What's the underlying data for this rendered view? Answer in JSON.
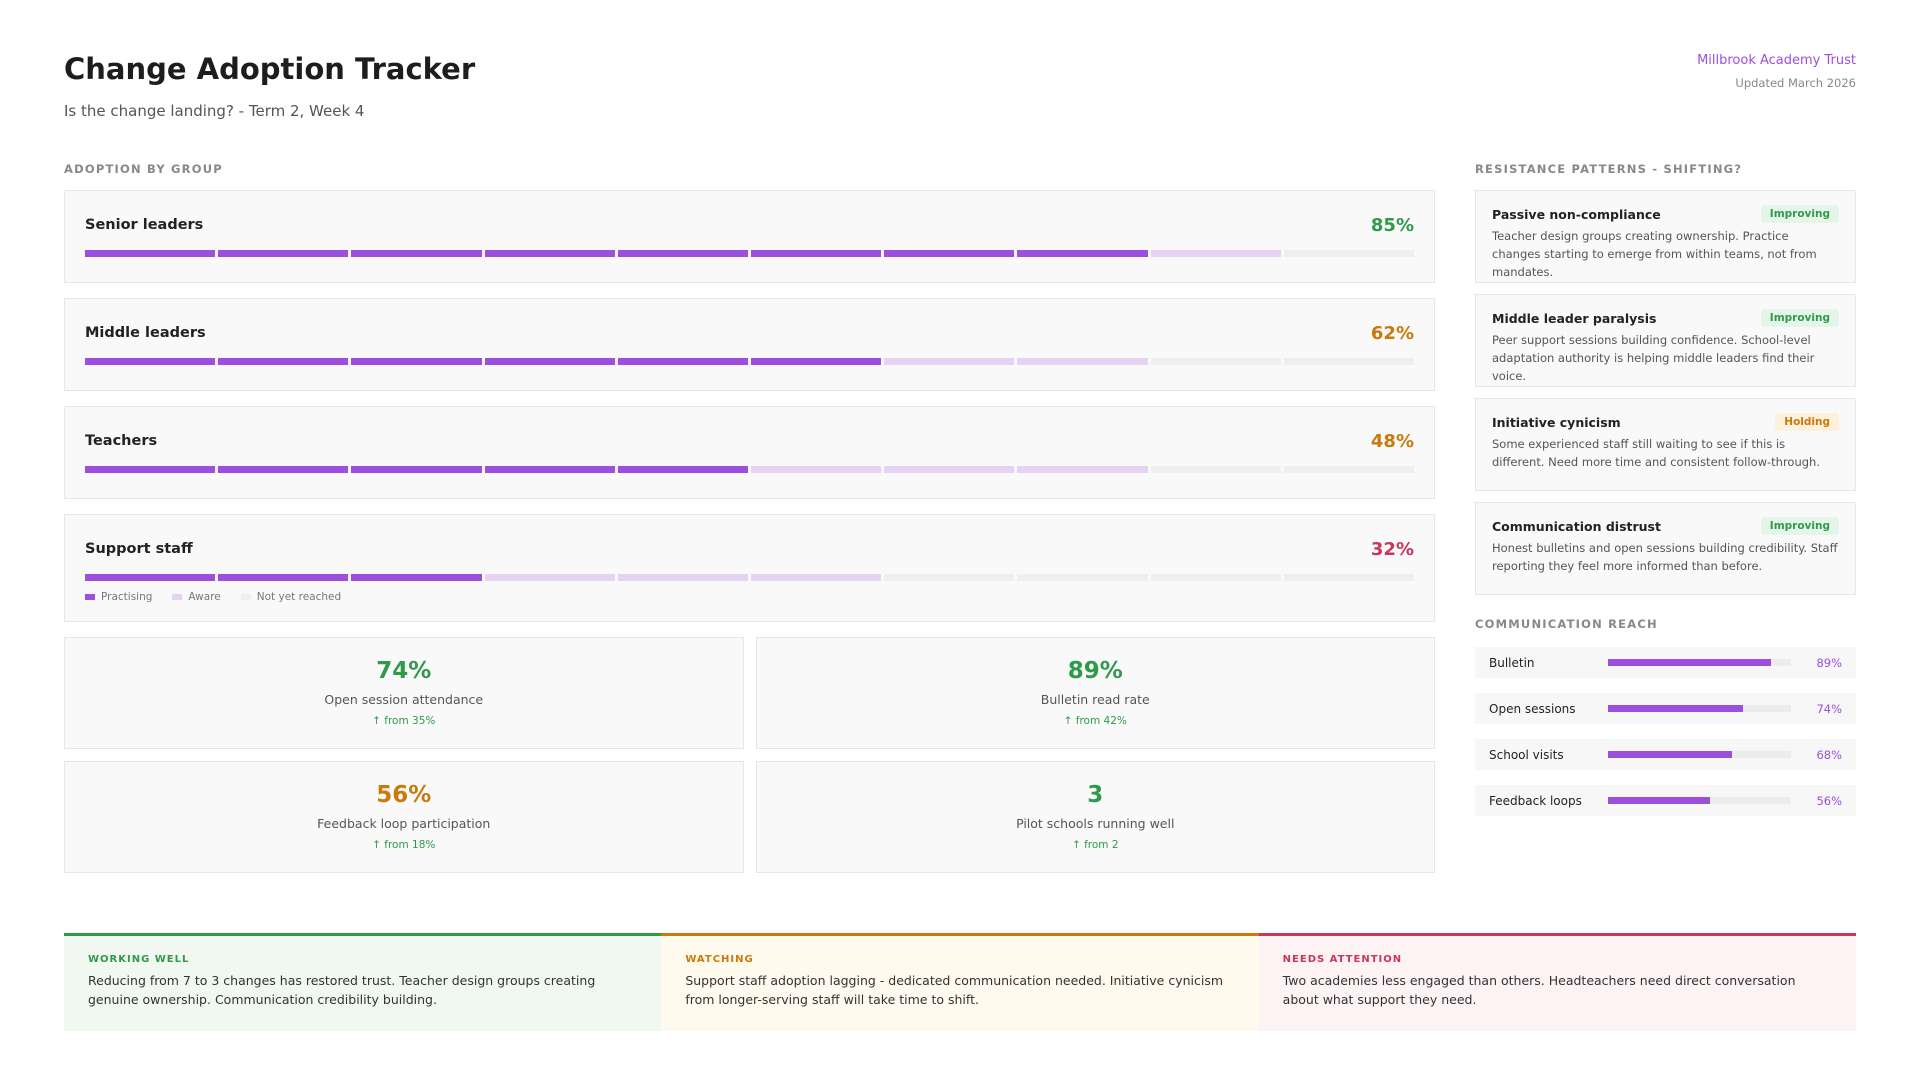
{
  "header": {
    "title": "Change Adoption Tracker",
    "subtitle": "Is the change landing? - Term 2, Week 4",
    "organisation": "Millbrook Academy Trust",
    "updated": "Updated March 2026"
  },
  "adoption": {
    "title": "ADOPTION BY GROUP",
    "colors": {
      "practising": "#9b4fdc",
      "aware": "#e6d2f3",
      "not_reached": "#efefef"
    },
    "groups": [
      {
        "name": "Senior leaders",
        "percent": {
          "value": 85,
          "label": "85%"
        },
        "color": "#2e9a4a",
        "practising": 8,
        "aware": 1,
        "not_reached": 1
      },
      {
        "name": "Middle leaders",
        "percent": {
          "value": 62,
          "label": "62%"
        },
        "color": "#c87a0a",
        "practising": 6,
        "aware": 2,
        "not_reached": 2
      },
      {
        "name": "Teachers",
        "percent": {
          "value": 48,
          "label": "48%"
        },
        "color": "#c87a0a",
        "practising": 5,
        "aware": 3,
        "not_reached": 2
      },
      {
        "name": "Support staff",
        "percent": {
          "value": 32,
          "label": "32%"
        },
        "color": "#c8365a",
        "practising": 3,
        "aware": 3,
        "not_reached": 4
      }
    ],
    "legend": {
      "practising": "Practising",
      "aware": "Aware",
      "not_reached": "Not yet reached"
    }
  },
  "kpis": [
    {
      "value": {
        "value": 74,
        "label": "74%"
      },
      "label": "Open session attendance",
      "change": "↑ from 35%",
      "color": "#2e9a4a"
    },
    {
      "value": {
        "value": 89,
        "label": "89%"
      },
      "label": "Bulletin read rate",
      "change": "↑ from 42%",
      "color": "#2e9a4a"
    },
    {
      "value": {
        "value": 56,
        "label": "56%"
      },
      "label": "Feedback loop participation",
      "change": "↑ from 18%",
      "color": "#c87a0a"
    },
    {
      "value": 3,
      "label": "Pilot schools running well",
      "change": "↑ from 2",
      "color": "#2e9a4a"
    }
  ],
  "resistance": {
    "title": "RESISTANCE PATTERNS - SHIFTING?",
    "items": [
      {
        "name": "Passive non-compliance",
        "status": "Improving",
        "status_color": "#2e9a4a",
        "status_bg": "#e6f5ea",
        "text": "Teacher design groups creating ownership. Practice changes starting to emerge from within teams, not from mandates."
      },
      {
        "name": "Middle leader paralysis",
        "status": "Improving",
        "status_color": "#2e9a4a",
        "status_bg": "#e6f5ea",
        "text": "Peer support sessions building confidence. School-level adaptation authority is helping middle leaders find their voice."
      },
      {
        "name": "Initiative cynicism",
        "status": "Holding",
        "status_color": "#c87a0a",
        "status_bg": "#fdf0dc",
        "text": "Some experienced staff still waiting to see if this is different. Need more time and consistent follow-through."
      },
      {
        "name": "Communication distrust",
        "status": "Improving",
        "status_color": "#2e9a4a",
        "status_bg": "#e6f5ea",
        "text": "Honest bulletins and open sessions building credibility. Staff reporting they feel more informed than before."
      }
    ]
  },
  "reach": {
    "title": "COMMUNICATION REACH",
    "xlim": [
      0,
      100
    ],
    "color": "#9b4fdc",
    "items": [
      {
        "name": "Bulletin",
        "value": {
          "value": 89,
          "label": "89%"
        }
      },
      {
        "name": "Open sessions",
        "value": {
          "value": 74,
          "label": "74%"
        }
      },
      {
        "name": "School visits",
        "value": {
          "value": 68,
          "label": "68%"
        }
      },
      {
        "name": "Feedback loops",
        "value": {
          "value": 56,
          "label": "56%"
        }
      }
    ]
  },
  "notes": [
    {
      "label": "WORKING WELL",
      "text": "Reducing from 7 to 3 changes has restored trust. Teacher design groups creating genuine ownership. Communication credibility building.",
      "color": "#2e9a4a",
      "background": "#f0f8f1"
    },
    {
      "label": "WATCHING",
      "text": "Support staff adoption lagging - dedicated communication needed. Initiative cynicism from longer-serving staff will take time to shift.",
      "color": "#c87a0a",
      "background": "#fffaee"
    },
    {
      "label": "NEEDS ATTENTION",
      "text": "Two academies less engaged than others. Headteachers need direct conversation about what support they need.",
      "color": "#c8365a",
      "background": "#fdf2f4"
    }
  ]
}
